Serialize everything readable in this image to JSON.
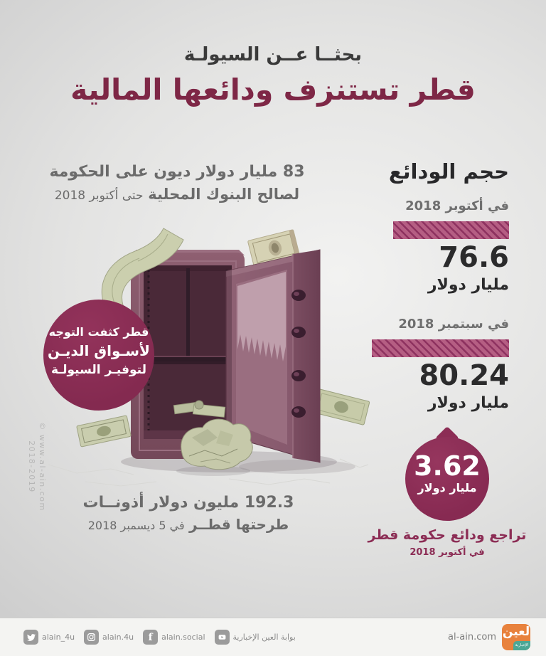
{
  "header": {
    "kicker": "بحثــا عــن السيولـة",
    "title": "قطر تستنزف ودائعها المالية"
  },
  "debt_note": {
    "line1_strong": "83 مليار دولار",
    "line1_rest": "ديون على الحكومة",
    "line2_strong": "لصالح البنوك المحلية",
    "line2_rest": "حتى أكتوبر 2018"
  },
  "bubble": {
    "line1": "قطر كثفت التوجه",
    "line2": "لأسـواق الديـن",
    "line3": "لتوفيـر السيولـة"
  },
  "bills_note": {
    "line1_strong": "192.3 مليون دولار",
    "line1_rest": "أذونــات",
    "line2_strong": "طرحتها قطــر",
    "line2_rest": "في 5 ديسمبر 2018"
  },
  "deposits": {
    "title": "حجم الودائع",
    "items": [
      {
        "period": "في أكتوبر 2018",
        "value": "76.6",
        "unit": "مليار دولار",
        "bar_pct": 84.5
      },
      {
        "period": "في سبتمبر 2018",
        "value": "80.24",
        "unit": "مليار دولار",
        "bar_pct": 100
      }
    ],
    "drop": {
      "value": "3.62",
      "unit": "مليار دولار",
      "caption": "تراجع ودائع حكومة قطر",
      "period": "في أكتوبر 2018"
    }
  },
  "watermark": {
    "line1": "© www.al-ain.com",
    "line2": "2018-2019"
  },
  "footer": {
    "social": [
      {
        "network": "twitter",
        "handle": "alain_4u"
      },
      {
        "network": "instagram",
        "handle": "alain.4u"
      },
      {
        "network": "facebook",
        "handle": "alain.social"
      },
      {
        "network": "youtube",
        "handle": "بوابة العين الإخبارية"
      }
    ],
    "site": "al-ain.com",
    "logo": {
      "main": "لعين",
      "sub": "الإخبارية"
    }
  },
  "colors": {
    "maroon_title": "#7e2746",
    "circle_maroon": "#8c2d55",
    "bar_base": "#b55e83",
    "bar_stripe": "#8e3260",
    "text_dark": "#2b2b2c",
    "text_gray": "#6b6b6b",
    "logo_orange": "#e8823d",
    "logo_teal": "#4ba795"
  },
  "chart_data": {
    "type": "bar",
    "title": "حجم الودائع",
    "categories": [
      "في سبتمبر 2018",
      "في أكتوبر 2018"
    ],
    "values": [
      80.24,
      76.6
    ],
    "unit": "مليار دولار (billion USD)",
    "legend_position": "none",
    "grid": false,
    "annotations": [
      "تراجع ودائع حكومة قطر في أكتوبر 2018: 3.62 مليار دولار",
      "83 مليار دولار ديون على الحكومة لصالح البنوك المحلية حتى أكتوبر 2018",
      "192.3 مليون دولار أذونات طرحتها قطر في 5 ديسمبر 2018",
      "قطر كثفت التوجه لأسواق الدين لتوفير السيولة"
    ]
  }
}
